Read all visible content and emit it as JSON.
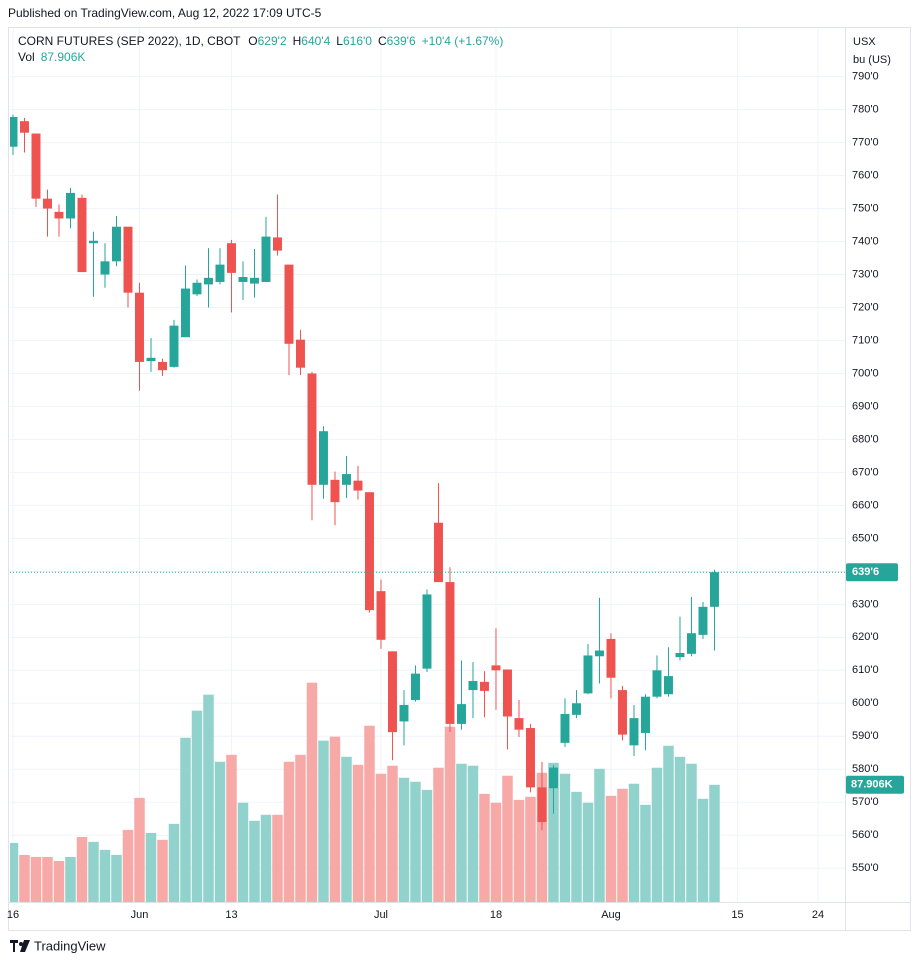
{
  "chart_data": {
    "type": "candlestick",
    "published": "Published on TradingView.com, Aug 12, 2022 17:09 UTC-5",
    "title": "CORN FUTURES (SEP 2022), 1D, CBOT",
    "legend_values": [
      {
        "key": "O",
        "text": "629'2"
      },
      {
        "key": "H",
        "text": "640'4"
      },
      {
        "key": "L",
        "text": "616'0"
      },
      {
        "key": "C",
        "text": "639'6"
      }
    ],
    "change": "+10'4 (+1.67%)",
    "volume_label": "Vol",
    "currency": "USX",
    "unit": "bu (US)",
    "footer": "TradingView",
    "up_color": "#26a69a",
    "down_color": "#ef5350",
    "grid": true,
    "xlim": [
      -0.26,
      72.35
    ],
    "xticks": [
      {
        "value": 0,
        "label": "16"
      },
      {
        "value": 11,
        "label": "Jun"
      },
      {
        "value": 19,
        "label": "13"
      },
      {
        "value": 32,
        "label": "Jul"
      },
      {
        "value": 42,
        "label": "18"
      },
      {
        "value": 52,
        "label": "Aug"
      },
      {
        "value": 63,
        "label": "15"
      },
      {
        "value": 70,
        "label": "24"
      }
    ],
    "ylim": [
      539.75,
      804.75
    ],
    "yticks": [
      {
        "value": 550,
        "label": "550'0"
      },
      {
        "value": 560,
        "label": "560'0"
      },
      {
        "value": 570,
        "label": "570'0"
      },
      {
        "value": 580,
        "label": "580'0"
      },
      {
        "value": 590,
        "label": "590'0"
      },
      {
        "value": 600,
        "label": "600'0"
      },
      {
        "value": 610,
        "label": "610'0"
      },
      {
        "value": 620,
        "label": "620'0"
      },
      {
        "value": 630,
        "label": "630'0"
      },
      {
        "value": 640,
        "label": "640'0"
      },
      {
        "value": 650,
        "label": "650'0"
      },
      {
        "value": 660,
        "label": "660'0"
      },
      {
        "value": 670,
        "label": "670'0"
      },
      {
        "value": 680,
        "label": "680'0"
      },
      {
        "value": 690,
        "label": "690'0"
      },
      {
        "value": 700,
        "label": "700'0"
      },
      {
        "value": 710,
        "label": "710'0"
      },
      {
        "value": 720,
        "label": "720'0"
      },
      {
        "value": 730,
        "label": "730'0"
      },
      {
        "value": 740,
        "label": "740'0"
      },
      {
        "value": 750,
        "label": "750'0"
      },
      {
        "value": 760,
        "label": "760'0"
      },
      {
        "value": 770,
        "label": "770'0"
      },
      {
        "value": 780,
        "label": "780'0"
      },
      {
        "value": 790,
        "label": "790'0"
      }
    ],
    "open": [
      768.75,
      776.5,
      772.75,
      753,
      749,
      747,
      753.25,
      739.5,
      730,
      734,
      744.5,
      724.5,
      703.75,
      703.5,
      702,
      711,
      724,
      727,
      727.75,
      739.5,
      727.75,
      727.25,
      727.75,
      741.25,
      733,
      710.25,
      700,
      666.25,
      667.75,
      666.25,
      667.5,
      664,
      634,
      615.75,
      594.5,
      601,
      610.5,
      654.75,
      636.75,
      593.75,
      604,
      606.5,
      611.5,
      610.25,
      595.5,
      592.5,
      574.5,
      574.25,
      588,
      596.5,
      603,
      614.25,
      619.5,
      604,
      587.25,
      591,
      602,
      602.75,
      614,
      615,
      620.75,
      629.25
    ],
    "high": [
      778.5,
      777.5,
      772.75,
      755.75,
      751.25,
      756.25,
      754.25,
      743,
      739.5,
      747.75,
      744.5,
      727.5,
      710.75,
      704.5,
      716.25,
      732.75,
      728.5,
      738,
      738,
      740.5,
      734,
      737.75,
      747.5,
      754.25,
      733,
      713.25,
      700.5,
      684,
      670.25,
      675,
      672,
      664,
      637.5,
      615.75,
      604,
      611.5,
      634.5,
      666.75,
      641.25,
      613,
      612.5,
      609.75,
      622.75,
      610.25,
      601,
      593.75,
      582.25,
      581.25,
      601.5,
      604,
      618,
      632,
      621.25,
      605.25,
      599.5,
      602.75,
      614.5,
      617,
      626.25,
      632.25,
      630.75,
      640.5
    ],
    "low": [
      766.25,
      767,
      750.5,
      741.5,
      741.5,
      744,
      730.75,
      723.25,
      726,
      732.5,
      720,
      694.75,
      700.5,
      699.25,
      701.75,
      711,
      723.5,
      720,
      727,
      718.5,
      722.25,
      723,
      727.75,
      735.75,
      699.5,
      699.5,
      655.5,
      662,
      654,
      662.25,
      661.75,
      627.5,
      616.5,
      582.75,
      587.25,
      600.5,
      609.5,
      636.75,
      591.25,
      592,
      595.5,
      595.75,
      598,
      586,
      589.75,
      573,
      561.5,
      566.5,
      586.75,
      595.5,
      602.75,
      606,
      601.5,
      588.75,
      584,
      585.75,
      601.5,
      602,
      613,
      614.25,
      619.5,
      616
    ],
    "close": [
      777.75,
      773,
      753,
      750,
      747,
      754.75,
      730.75,
      740.25,
      734,
      744.5,
      724.5,
      703.5,
      704.75,
      701,
      714.5,
      725.75,
      727.5,
      729,
      733,
      730.5,
      729.25,
      729,
      741.5,
      737.25,
      709,
      701.75,
      666.25,
      682.5,
      661,
      669.5,
      664.5,
      628.25,
      619.25,
      591.25,
      599.5,
      609,
      633,
      636.75,
      593.75,
      599.75,
      606.75,
      603.75,
      610,
      596,
      592,
      574.5,
      564,
      580.5,
      596.75,
      600,
      614.5,
      616,
      607.75,
      590.5,
      595.5,
      602,
      610,
      608.25,
      615.25,
      621.25,
      629.25,
      639.75
    ],
    "volume": {
      "values": [
        44.3,
        35.3,
        33.8,
        33.8,
        30.8,
        33.8,
        48.8,
        45.1,
        39.1,
        35.3,
        54.1,
        78.1,
        51.8,
        46.6,
        58.6,
        123.2,
        143.5,
        155.5,
        105.2,
        110.4,
        74.4,
        60.9,
        65.4,
        65.4,
        105.2,
        110.4,
        164.5,
        121,
        124,
        108.9,
        102.9,
        132.2,
        96.2,
        102.2,
        93.2,
        90.2,
        84.1,
        100.7,
        131.5,
        103.7,
        102.2,
        81.1,
        74.4,
        94.7,
        76.6,
        78.9,
        96.9,
        104.4,
        96.2,
        82.6,
        74.4,
        99.9,
        79.6,
        84.9,
        88.7,
        72.9,
        100.7,
        117.2,
        108.9,
        103.7,
        77.4,
        87.906
      ],
      "ylim": [
        0,
        300
      ],
      "up_color": "#92d2cc",
      "down_color": "#f7a9a7"
    },
    "last_price": {
      "value": 639.75,
      "label": "639'6"
    },
    "last_volume": {
      "value": 87.906,
      "label": "87.906K"
    }
  }
}
